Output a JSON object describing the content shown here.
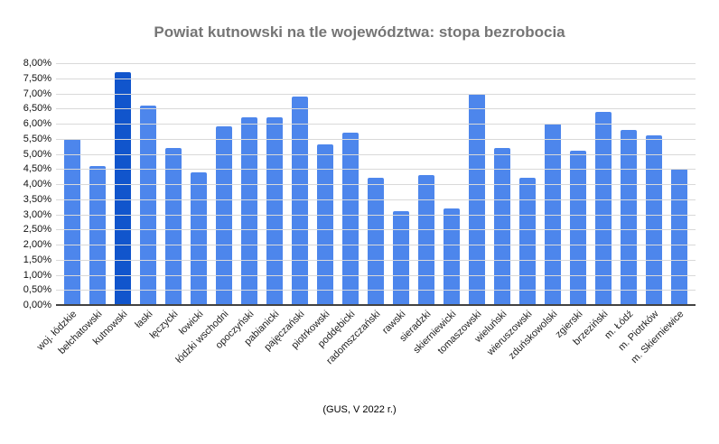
{
  "title": "Powiat kutnowski na tle województwa: stopa bezrobocia",
  "source_note": "(GUS, V 2022 r.)",
  "colors": {
    "bar": "#4d86ec",
    "highlight": "#1155cc",
    "gridline": "#d9d9d9",
    "axis_line": "#424242",
    "title_text": "#757575"
  },
  "chart_data": {
    "type": "bar",
    "title": "Powiat kutnowski na tle województwa: stopa bezrobocia",
    "xlabel": "",
    "ylabel": "",
    "categories": [
      "woj. łódzkie",
      "bełchatowski",
      "kutnowski",
      "łaski",
      "łęczycki",
      "łowicki",
      "łódzki wschodni",
      "opoczyński",
      "pabianicki",
      "pajęczański",
      "piotrkowski",
      "poddębicki",
      "radomszczański",
      "rawski",
      "sieradzki",
      "skierniewicki",
      "tomaszowski",
      "wieluński",
      "wieruszowski",
      "zduńskowolski",
      "zgierski",
      "brzeziński",
      "m. Łódź",
      "m. Piotrków",
      "m. Skierniewice"
    ],
    "values": [
      5.5,
      4.6,
      7.7,
      6.6,
      5.2,
      4.4,
      5.9,
      6.2,
      6.2,
      6.9,
      5.3,
      5.7,
      4.2,
      3.1,
      4.3,
      3.2,
      7.0,
      5.2,
      4.2,
      6.0,
      5.1,
      6.4,
      5.8,
      5.6,
      4.5
    ],
    "unit": "%",
    "highlighted_category": "kutnowski",
    "highlight_index": 2,
    "ylim": [
      0,
      8
    ],
    "y_tick_step": 0.5,
    "y_tick_labels": [
      "8,00%",
      "7,50%",
      "7,00%",
      "6,50%",
      "6,00%",
      "5,50%",
      "5,00%",
      "4,50%",
      "4,00%",
      "3,50%",
      "3,00%",
      "2,50%",
      "2,00%",
      "1,50%",
      "1,00%",
      "0,50%",
      "0,00%"
    ],
    "grid": true,
    "legend_position": "none"
  }
}
